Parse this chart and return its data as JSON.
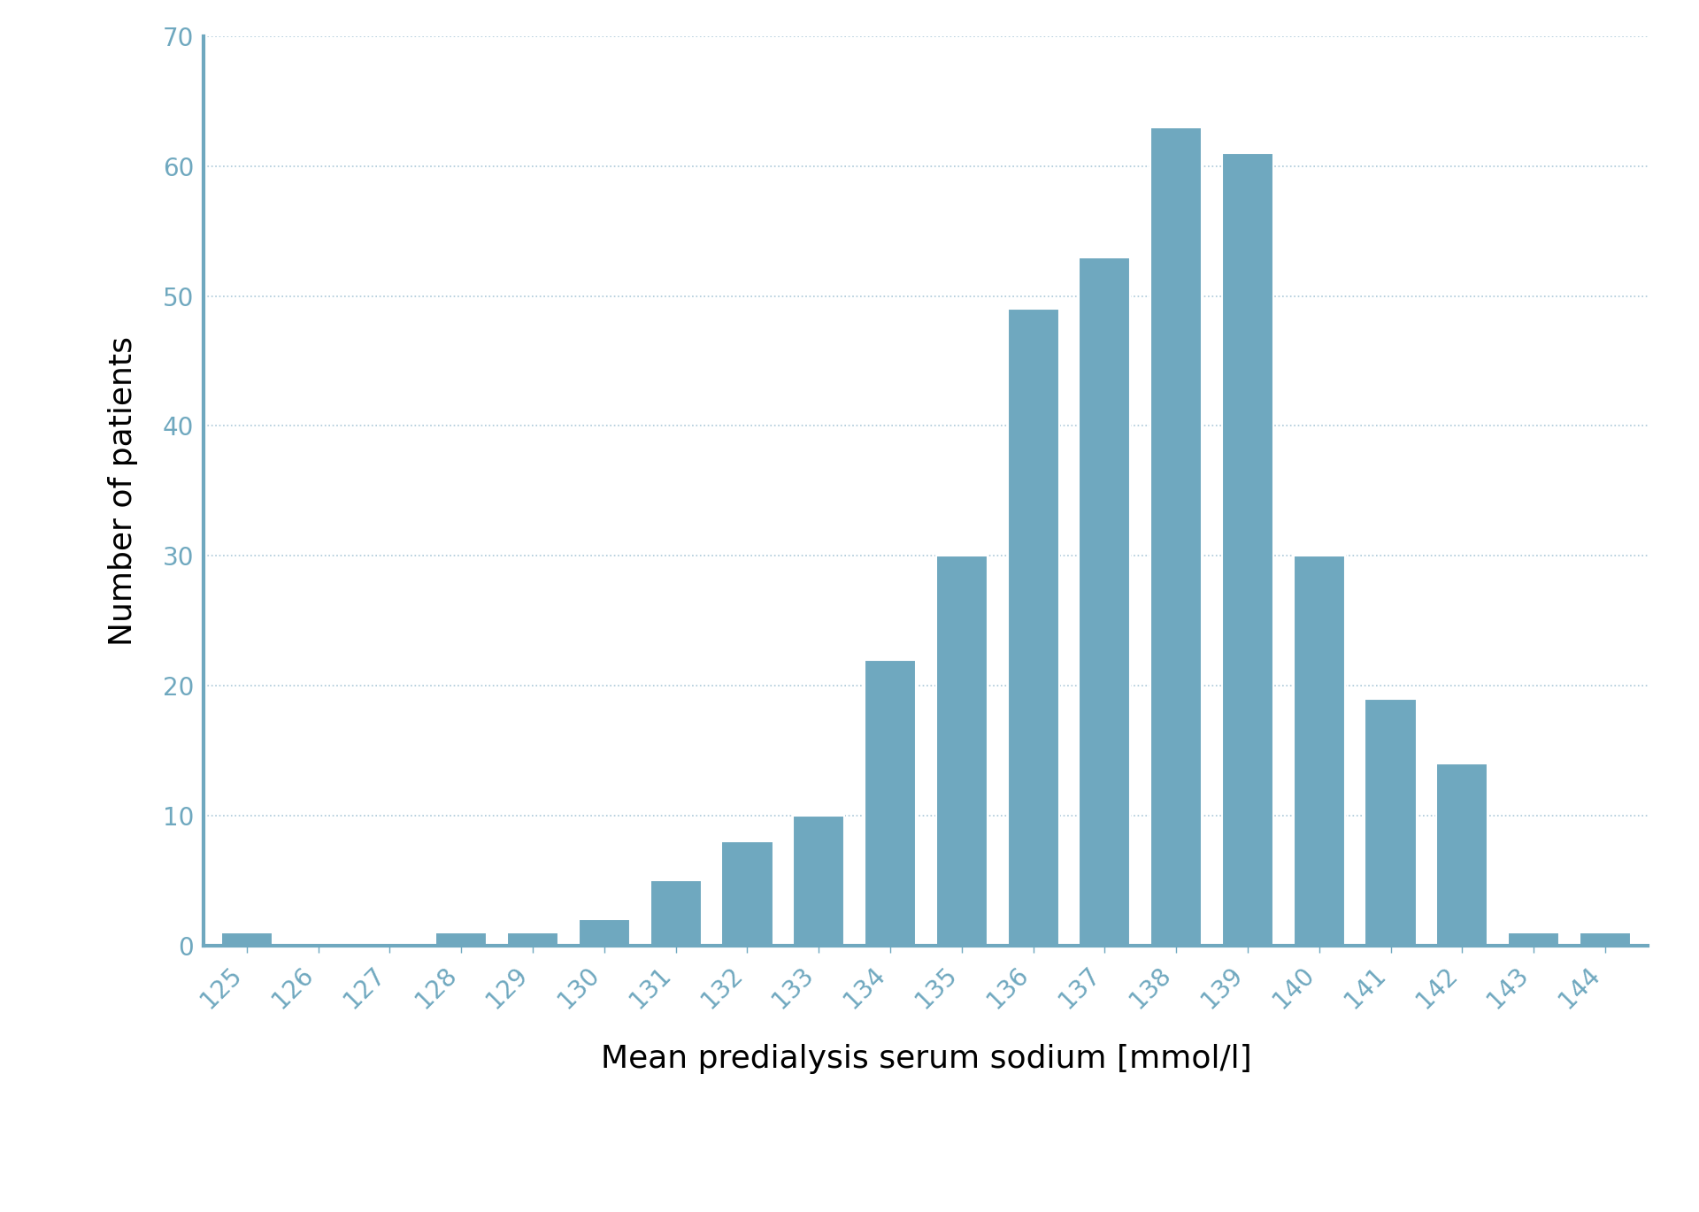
{
  "categories": [
    125,
    126,
    127,
    128,
    129,
    130,
    131,
    132,
    133,
    134,
    135,
    136,
    137,
    138,
    139,
    140,
    141,
    142,
    143,
    144
  ],
  "values": [
    1,
    0,
    0,
    1,
    1,
    2,
    5,
    8,
    10,
    22,
    30,
    49,
    53,
    63,
    61,
    30,
    19,
    14,
    1,
    1
  ],
  "bar_color": "#6fa8bf",
  "xlabel": "Mean predialysis serum sodium [mmol/l]",
  "ylabel": "Number of patients",
  "ylim": [
    0,
    70
  ],
  "yticks": [
    0,
    10,
    20,
    30,
    40,
    50,
    60,
    70
  ],
  "background_color": "#ffffff",
  "grid_color": "#aac8d8",
  "tick_color": "#6fa8bf",
  "axis_label_color": "#000000",
  "axis_label_fontsize": 26,
  "tick_fontsize": 20,
  "bar_width": 0.72,
  "spine_color": "#6fa8bf",
  "spine_linewidth": 3.0
}
